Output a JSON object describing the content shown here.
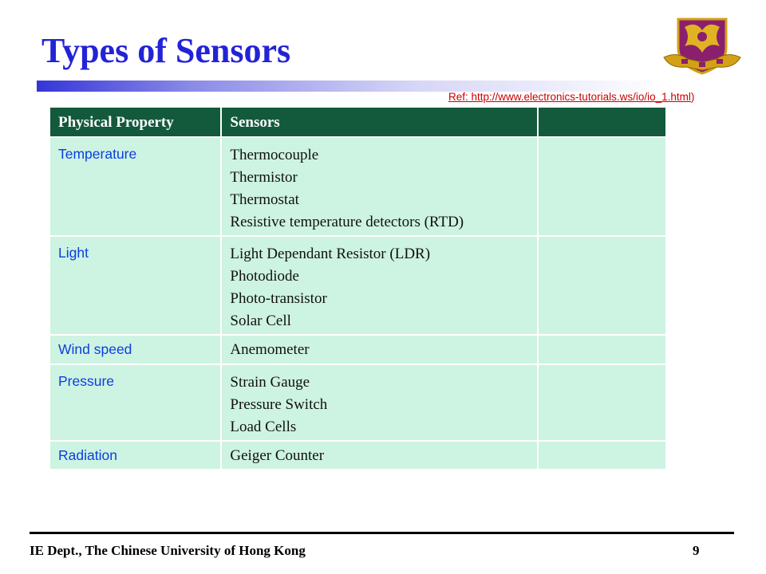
{
  "slide": {
    "title": "Types of Sensors",
    "reference": {
      "text": "Ref: http://www.electronics-tutorials.ws/io/io_1.html",
      "closing": ")"
    }
  },
  "table": {
    "headers": [
      "Physical Property",
      "Sensors",
      ""
    ],
    "rows": [
      {
        "property": "Temperature",
        "sensors": [
          "Thermocouple",
          "Thermistor",
          "Thermostat",
          "Resistive temperature detectors (RTD)"
        ]
      },
      {
        "property": "Light",
        "sensors": [
          "Light Dependant Resistor (LDR)",
          "Photodiode",
          "Photo-transistor",
          "Solar Cell"
        ]
      },
      {
        "property": "Wind speed",
        "sensors": [
          "Anemometer"
        ]
      },
      {
        "property": "Pressure",
        "sensors": [
          "Strain Gauge",
          "Pressure Switch",
          "Load Cells"
        ]
      },
      {
        "property": "Radiation",
        "sensors": [
          "Geiger Counter"
        ]
      }
    ]
  },
  "footer": {
    "organization": "IE Dept., The Chinese University of Hong Kong",
    "page_number": "9"
  },
  "colors": {
    "title": "#2323d6",
    "header_bg": "#135a3c",
    "cell_bg": "#cdf3e2",
    "property_text": "#0a3fe0",
    "reference_link": "#cc0000"
  },
  "icons": {
    "logo": "university-crest-icon"
  }
}
